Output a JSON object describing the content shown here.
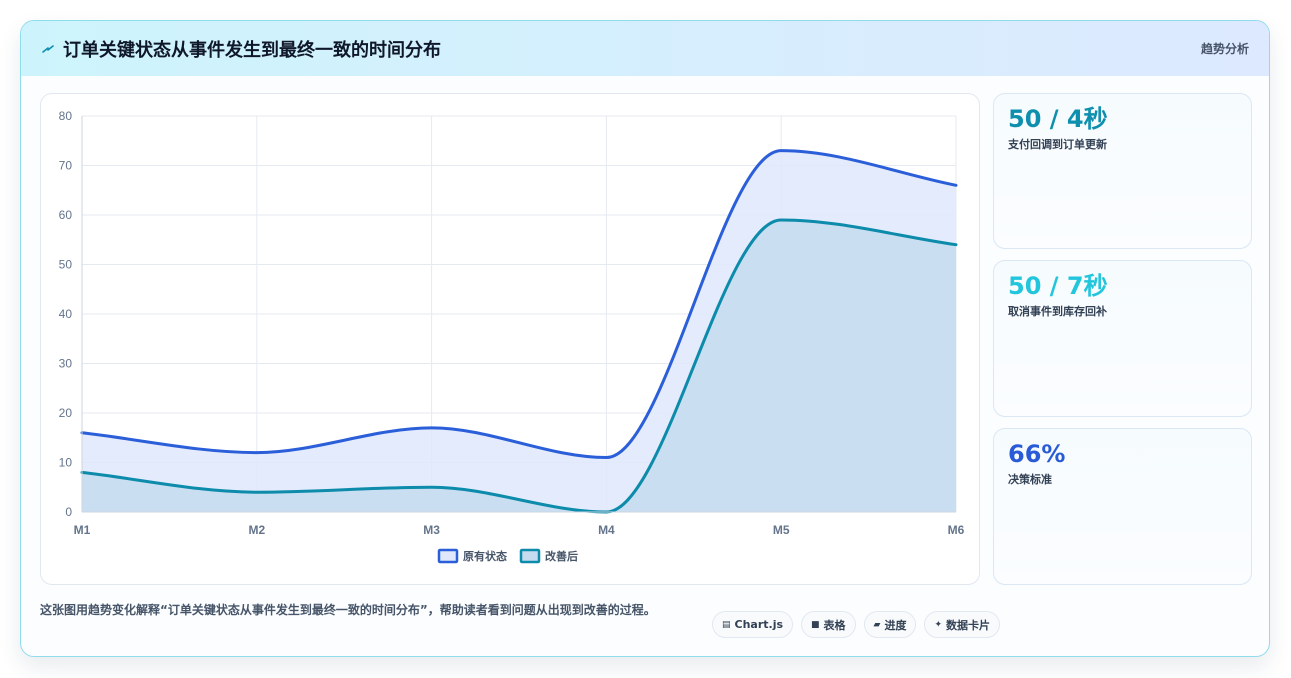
{
  "header": {
    "title": "订单关键状态从事件发生到最终一致的时间分布",
    "tag": "趋势分析"
  },
  "stats": [
    {
      "value": "50 / 4秒",
      "label": "支付回调到订单更新",
      "color": "#0e8fae"
    },
    {
      "value": "50 / 7秒",
      "label": "取消事件到库存回补",
      "color": "#22c6dc"
    },
    {
      "value": "66%",
      "label": "决策标准",
      "color": "#2a5bd7"
    }
  ],
  "footer": {
    "description": "这张图用趋势变化解释“订单关键状态从事件发生到最终一致的时间分布”，帮助读者看到问题从出现到改善的过程。",
    "pills": [
      {
        "icon": "chart-icon",
        "glyph": "▤",
        "label": "Chart.js"
      },
      {
        "icon": "table-icon",
        "glyph": "■",
        "label": "表格"
      },
      {
        "icon": "progress-icon",
        "glyph": "▰",
        "label": "进度"
      },
      {
        "icon": "card-icon",
        "glyph": "✦",
        "label": "数据卡片"
      }
    ]
  },
  "chart_data": {
    "type": "area",
    "categories": [
      "M1",
      "M2",
      "M3",
      "M4",
      "M5",
      "M6"
    ],
    "series": [
      {
        "name": "原有状态",
        "values": [
          16,
          12,
          17,
          11,
          73,
          66
        ],
        "color": "#2b5fd9",
        "fill": "#dfe8fb"
      },
      {
        "name": "改善后",
        "values": [
          8,
          4,
          5,
          0,
          59,
          54
        ],
        "color": "#0d8bab",
        "fill": "#c5dcf0"
      }
    ],
    "ylim": [
      0,
      80
    ],
    "yticks": [
      0,
      10,
      20,
      30,
      40,
      50,
      60,
      70,
      80
    ],
    "grid": true,
    "legend": "bottom"
  }
}
